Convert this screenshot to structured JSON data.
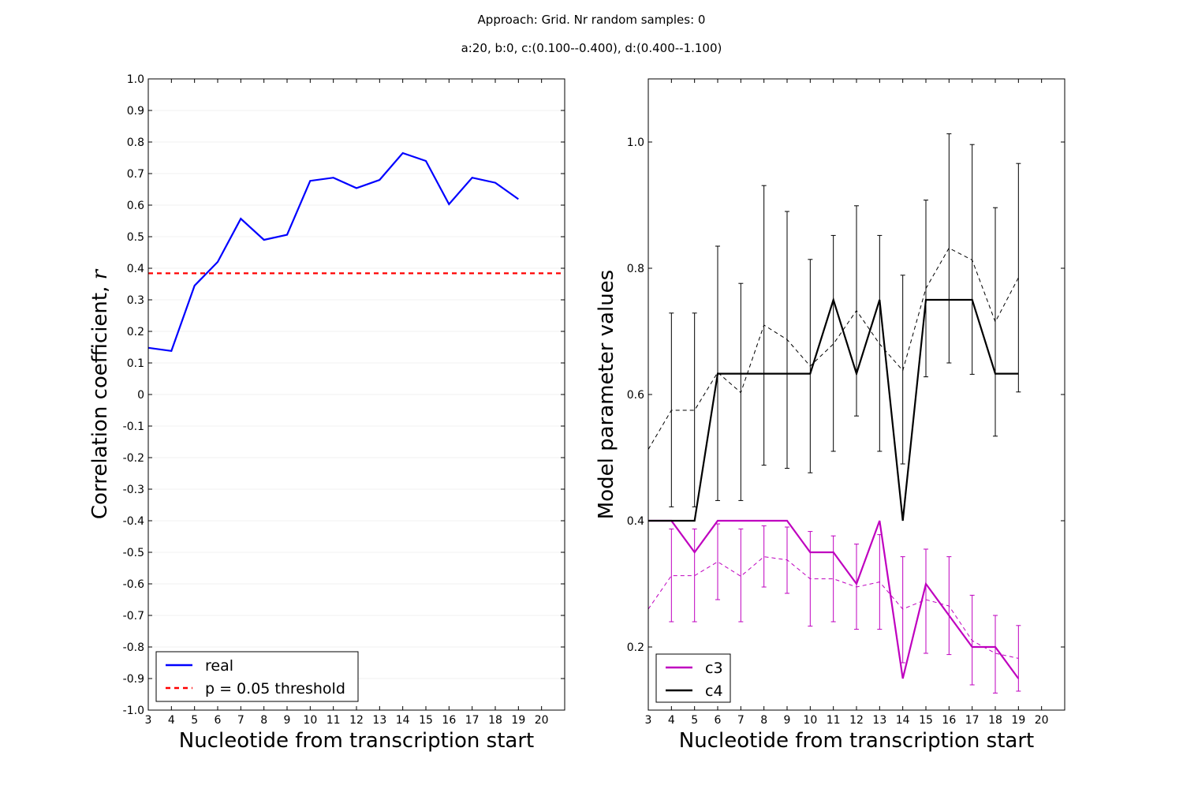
{
  "figure": {
    "title_line1": "Approach: Grid. Nr random samples: 0",
    "title_line2": "a:20, b:0, c:(0.100--0.400), d:(0.400--1.100)"
  },
  "chart_data": [
    {
      "type": "line",
      "xlabel": "Nucleotide from transcription start",
      "ylabel": "Correlation coefficient, ",
      "ylabel_symbol": "r",
      "xlim": [
        3,
        21
      ],
      "ylim": [
        -1.0,
        1.0
      ],
      "x_ticks": [
        3,
        4,
        5,
        6,
        7,
        8,
        9,
        10,
        11,
        12,
        13,
        14,
        15,
        16,
        17,
        18,
        19,
        20
      ],
      "y_ticks": [
        1.0,
        0.9,
        0.8,
        0.7,
        0.6,
        0.5,
        0.4,
        0.3,
        0.2,
        0.1,
        0,
        -0.1,
        -0.2,
        -0.3,
        -0.4,
        -0.5,
        -0.6,
        -0.7,
        -0.8,
        -0.9,
        -1.0
      ],
      "y_tick_labels": [
        "1.0",
        "0.9",
        "0.8",
        "0.7",
        "0.6",
        "0.5",
        "0.4",
        "0.3",
        "0.2",
        "0.1",
        "0",
        "-0.1",
        "-0.2",
        "-0.3",
        "-0.4",
        "-0.5",
        "-0.6",
        "-0.7",
        "-0.8",
        "-0.9",
        "-1.0"
      ],
      "grid": "horizontal",
      "legend_position": "bottom-left",
      "series": [
        {
          "name": "real",
          "color": "#0000ff",
          "style": "solid",
          "x": [
            3,
            4,
            5,
            6,
            7,
            8,
            9,
            10,
            11,
            12,
            13,
            14,
            15,
            16,
            17,
            18,
            19
          ],
          "values": [
            0.148,
            0.138,
            0.345,
            0.42,
            0.557,
            0.49,
            0.506,
            0.677,
            0.687,
            0.654,
            0.68,
            0.765,
            0.74,
            0.603,
            0.687,
            0.671,
            0.619
          ]
        },
        {
          "name": "p = 0.05 threshold",
          "color": "#ff0000",
          "style": "dashed",
          "x": [
            3,
            21
          ],
          "values": [
            0.384,
            0.384
          ]
        }
      ]
    },
    {
      "type": "line",
      "xlabel": "Nucleotide from transcription start",
      "ylabel": "Model parameter values",
      "xlim": [
        3,
        21
      ],
      "ylim": [
        0.1,
        1.1
      ],
      "x_ticks": [
        3,
        4,
        5,
        6,
        7,
        8,
        9,
        10,
        11,
        12,
        13,
        14,
        15,
        16,
        17,
        18,
        19,
        20
      ],
      "y_ticks": [
        0.2,
        0.4,
        0.6,
        0.8,
        1.0
      ],
      "y_tick_labels": [
        "0.2",
        "0.4",
        "0.6",
        "0.8",
        "1.0"
      ],
      "grid": "none",
      "legend_position": "bottom-left",
      "series": [
        {
          "name": "c3",
          "color": "#bf00bf",
          "style": "solid",
          "x": [
            3,
            4,
            5,
            6,
            7,
            8,
            9,
            10,
            11,
            12,
            13,
            14,
            15,
            16,
            17,
            18,
            19
          ],
          "values": [
            0.4,
            0.4,
            0.35,
            0.4,
            0.4,
            0.4,
            0.4,
            0.35,
            0.35,
            0.3,
            0.4,
            0.15,
            0.3,
            0.25,
            0.2,
            0.2,
            0.15
          ]
        },
        {
          "name": "c4",
          "color": "#000000",
          "style": "solid",
          "x": [
            3,
            4,
            5,
            6,
            7,
            8,
            9,
            10,
            11,
            12,
            13,
            14,
            15,
            16,
            17,
            18,
            19
          ],
          "values": [
            0.4,
            0.4,
            0.4,
            0.633,
            0.633,
            0.633,
            0.633,
            0.633,
            0.75,
            0.633,
            0.75,
            0.4,
            0.75,
            0.75,
            0.75,
            0.633,
            0.633
          ]
        }
      ],
      "mean_series": [
        {
          "color": "#bf00bf",
          "style": "dashed",
          "x": [
            3,
            4,
            5,
            6,
            7,
            8,
            9,
            10,
            11,
            12,
            13,
            14,
            15,
            16,
            17,
            18,
            19
          ],
          "values": [
            0.26,
            0.313,
            0.313,
            0.335,
            0.312,
            0.343,
            0.338,
            0.308,
            0.308,
            0.295,
            0.303,
            0.26,
            0.275,
            0.265,
            0.21,
            0.19,
            0.182
          ],
          "error_low": [
            null,
            0.24,
            0.24,
            0.275,
            0.24,
            0.295,
            0.285,
            0.233,
            0.24,
            0.228,
            0.228,
            0.175,
            0.19,
            0.188,
            0.14,
            0.127,
            0.13
          ],
          "error_high": [
            null,
            0.387,
            0.387,
            0.395,
            0.387,
            0.392,
            0.39,
            0.383,
            0.376,
            0.363,
            0.378,
            0.343,
            0.355,
            0.343,
            0.282,
            0.25,
            0.234
          ]
        },
        {
          "color": "#000000",
          "style": "dashed",
          "x": [
            3,
            4,
            5,
            6,
            7,
            8,
            9,
            10,
            11,
            12,
            13,
            14,
            15,
            16,
            17,
            18,
            19
          ],
          "values": [
            0.513,
            0.575,
            0.575,
            0.635,
            0.603,
            0.71,
            0.687,
            0.645,
            0.68,
            0.733,
            0.68,
            0.638,
            0.768,
            0.832,
            0.813,
            0.715,
            0.785
          ],
          "error_low": [
            null,
            0.422,
            0.422,
            0.432,
            0.432,
            0.488,
            0.483,
            0.476,
            0.51,
            0.566,
            0.51,
            0.49,
            0.628,
            0.65,
            0.632,
            0.534,
            0.604
          ],
          "error_high": [
            null,
            0.729,
            0.729,
            0.835,
            0.776,
            0.931,
            0.89,
            0.814,
            0.852,
            0.899,
            0.852,
            0.789,
            0.908,
            1.013,
            0.996,
            0.896,
            0.966
          ]
        }
      ]
    }
  ]
}
